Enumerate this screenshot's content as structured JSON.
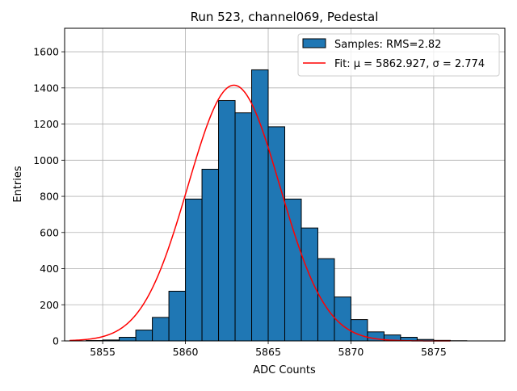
{
  "chart_data": {
    "type": "bar",
    "title": "Run 523, channel069, Pedestal",
    "xlabel": "ADC Counts",
    "ylabel": "Entries",
    "xlim": [
      5852.7,
      5879.3
    ],
    "ylim": [
      0,
      1730
    ],
    "xticks": [
      5855,
      5860,
      5865,
      5870,
      5875
    ],
    "yticks": [
      0,
      200,
      400,
      600,
      800,
      1000,
      1200,
      1400,
      1600
    ],
    "grid": true,
    "legend_position": "top-right",
    "colors": {
      "bars": "#1f77b4",
      "bar_edge": "#000000",
      "fit": "#ff0000",
      "grid": "#b0b0b0"
    },
    "histogram": {
      "name": "Samples: RMS=2.82",
      "bin_width": 1,
      "bin_left_edges": [
        5854,
        5855,
        5856,
        5857,
        5858,
        5859,
        5860,
        5861,
        5862,
        5863,
        5864,
        5865,
        5866,
        5867,
        5868,
        5869,
        5870,
        5871,
        5872,
        5873,
        5874,
        5875,
        5876
      ],
      "values": [
        2,
        5,
        20,
        60,
        130,
        275,
        785,
        950,
        1330,
        1262,
        1500,
        1185,
        785,
        625,
        455,
        243,
        118,
        50,
        33,
        20,
        8,
        3,
        1
      ]
    },
    "fit": {
      "name": "Fit: μ = 5862.927, σ = 2.774",
      "mu": 5862.927,
      "sigma": 2.774,
      "amplitude": 1415,
      "x_range": [
        5853,
        5876
      ]
    }
  }
}
